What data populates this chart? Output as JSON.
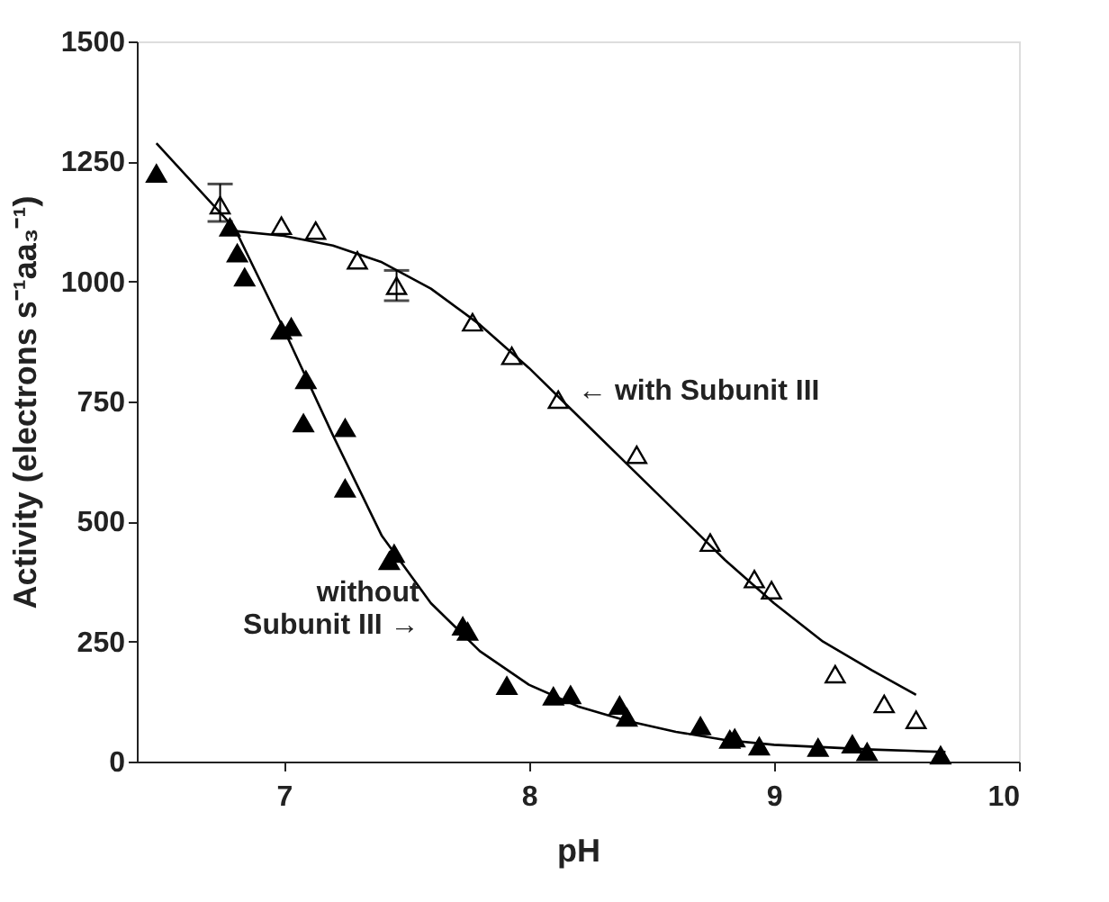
{
  "chart_data": {
    "type": "scatter",
    "xlabel": "pH",
    "ylabel": "Activity (electrons s⁻¹aa₃⁻¹)",
    "xlim": [
      6.4,
      10
    ],
    "xticks": [
      7,
      8,
      9,
      10
    ],
    "ylim": [
      0,
      1500
    ],
    "yticks": [
      0,
      250,
      500,
      750,
      1000,
      1250,
      1500
    ],
    "grid": false,
    "marker": "triangle",
    "series": [
      {
        "color": "#000000",
        "x": [
          6.48,
          6.78,
          6.81,
          6.84,
          6.99,
          7.03,
          7.09,
          7.08,
          7.25,
          7.25,
          7.43,
          7.45,
          7.73,
          7.75,
          7.91,
          8.1,
          8.17,
          8.37,
          8.4,
          8.7,
          8.82,
          8.84,
          8.94,
          9.18,
          9.32,
          9.38,
          9.68
        ],
        "values": [
          1225,
          1113,
          1059,
          1009,
          898,
          905,
          795,
          705,
          695,
          569,
          418,
          433,
          282,
          271,
          158,
          136,
          139,
          117,
          92,
          74,
          46,
          49,
          32,
          29,
          36,
          20,
          13
        ]
      },
      {
        "color": "#ffffff",
        "x": [
          6.74,
          6.99,
          7.13,
          7.3,
          7.46,
          7.77,
          7.93,
          8.12,
          8.44,
          8.74,
          8.92,
          8.99,
          9.25,
          9.45,
          9.58
        ],
        "values": [
          1159,
          1116,
          1106,
          1044,
          991,
          915,
          845,
          754,
          639,
          456,
          380,
          357,
          182,
          120,
          87
        ],
        "errors": [
          [
            1125,
            1203
          ],
          null,
          null,
          null,
          [
            960,
            1023
          ],
          null,
          null,
          null,
          null,
          null,
          null,
          null,
          null,
          null,
          null
        ]
      },
      {
        "type": "line",
        "color": "#000000",
        "line_style": "solid",
        "marker": "none",
        "x": [
          6.48,
          6.8,
          7.0,
          7.2,
          7.4,
          7.6,
          7.8,
          8.0,
          8.2,
          8.4,
          8.6,
          8.8,
          9.0,
          9.4,
          9.7
        ],
        "values": [
          1288,
          1110,
          900,
          680,
          470,
          330,
          230,
          160,
          115,
          85,
          62,
          45,
          35,
          25,
          20
        ]
      },
      {
        "type": "line",
        "color": "#000000",
        "line_style": "solid",
        "marker": "none",
        "x": [
          6.8,
          7.0,
          7.2,
          7.4,
          7.6,
          7.8,
          8.0,
          8.2,
          8.4,
          8.6,
          8.8,
          9.0,
          9.2,
          9.4,
          9.58
        ],
        "values": [
          1105,
          1095,
          1075,
          1040,
          985,
          910,
          820,
          720,
          620,
          520,
          420,
          330,
          250,
          190,
          139
        ]
      }
    ],
    "annotations": [
      "← with Subunit III",
      "without\nSubunit III →"
    ]
  }
}
